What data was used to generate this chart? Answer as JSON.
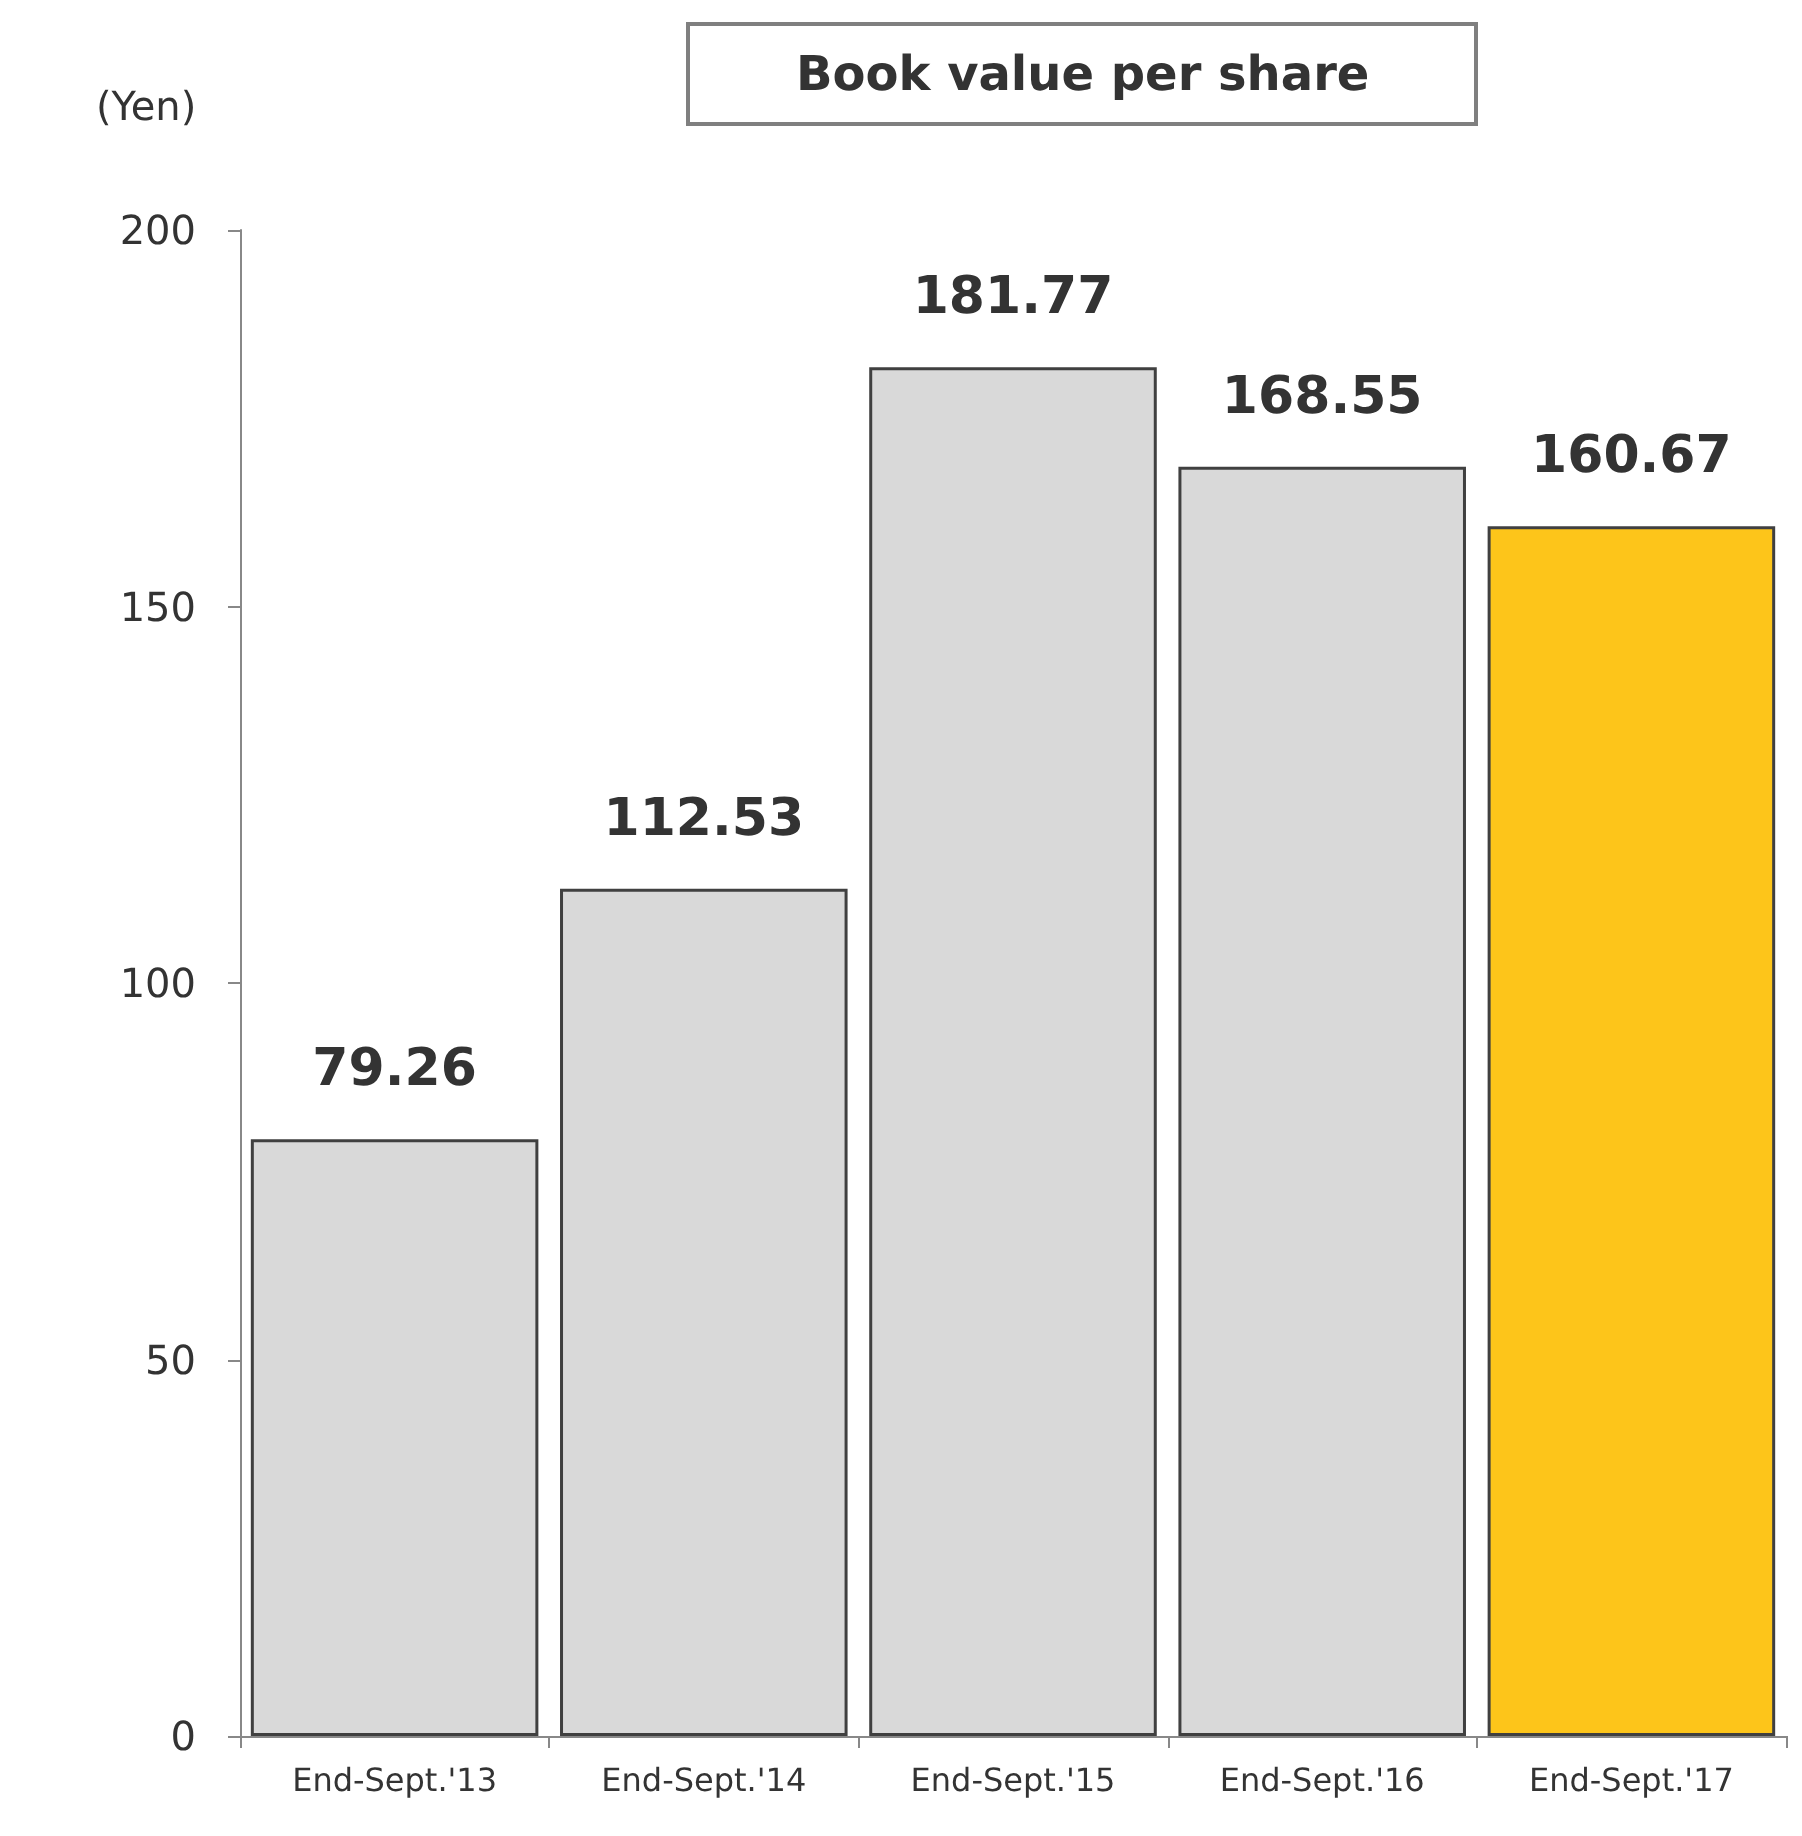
{
  "chart_data": {
    "type": "bar",
    "title": "Book value per share",
    "ylabel": "(Yen)",
    "categories": [
      "End-Sept.'13",
      "End-Sept.'14",
      "End-Sept.'15",
      "End-Sept.'16",
      "End-Sept.'17"
    ],
    "values": [
      79.26,
      112.53,
      181.77,
      168.55,
      160.67
    ],
    "colors": [
      "#d9d9d9",
      "#d9d9d9",
      "#d9d9d9",
      "#d9d9d9",
      "#fdc51a"
    ],
    "ylim": [
      0,
      200
    ],
    "yticks": [
      0,
      50,
      100,
      150,
      200
    ],
    "grid": false,
    "data_labels": true
  }
}
